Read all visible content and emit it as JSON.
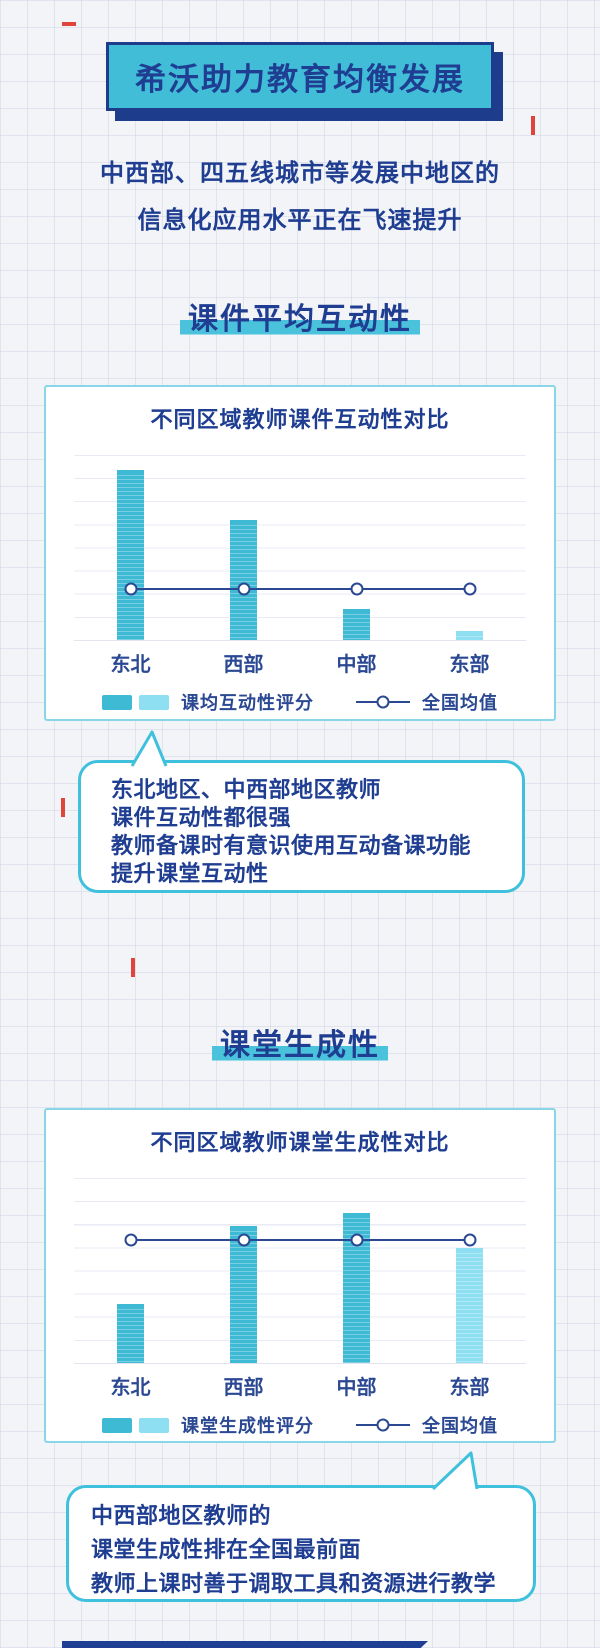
{
  "header": {
    "title": "希沃助力教育均衡发展",
    "intro_lines": [
      "中西部、四五线城市等发展中地区的",
      "信息化应用水平正在飞速提升"
    ]
  },
  "sections": [
    {
      "heading": "课件平均互动性"
    },
    {
      "heading": "课堂生成性"
    }
  ],
  "chart_data": [
    {
      "type": "bar",
      "title": "不同区域教师课件互动性对比",
      "categories": [
        "东北",
        "西部",
        "中部",
        "东部"
      ],
      "series": [
        {
          "name": "课均互动性评分",
          "values": [
            92,
            65,
            17,
            5
          ]
        }
      ],
      "national_average_line": {
        "name": "全国均值",
        "value": 27
      },
      "bar_colors": [
        "#3ebad5",
        "#3ebad5",
        "#3ebad5",
        "#8edff2"
      ],
      "value_scale": "percent-of-plot-height (no numeric axis shown)",
      "ylim": [
        0,
        100
      ],
      "grid": true,
      "legend_position": "bottom",
      "legend": {
        "bar_label": "课均互动性评分",
        "line_label": "全国均值"
      }
    },
    {
      "type": "bar",
      "title": "不同区域教师课堂生成性对比",
      "categories": [
        "东北",
        "西部",
        "中部",
        "东部"
      ],
      "series": [
        {
          "name": "课堂生成性评分",
          "values": [
            32,
            74,
            81,
            62
          ]
        }
      ],
      "national_average_line": {
        "name": "全国均值",
        "value": 66
      },
      "bar_colors": [
        "#3ebad5",
        "#3ebad5",
        "#3ebad5",
        "#8edff2"
      ],
      "value_scale": "percent-of-plot-height (no numeric axis shown)",
      "ylim": [
        0,
        100
      ],
      "grid": true,
      "legend_position": "bottom",
      "legend": {
        "bar_label": "课堂生成性评分",
        "line_label": "全国均值"
      }
    }
  ],
  "callouts": [
    {
      "lines": [
        "东北地区、中西部地区教师",
        "课件互动性都很强",
        "教师备课时有意识使用互动备课功能",
        "提升课堂互动性"
      ]
    },
    {
      "lines": [
        "中西部地区教师的",
        "课堂生成性排在全国最前面",
        "教师上课时善于调取工具和资源进行教学"
      ]
    }
  ],
  "colors": {
    "navy_text": "#1f3e92",
    "title_box_fill": "#41bdd8",
    "highlight_band": "#4ac2dc",
    "card_border": "#8ad6e9",
    "bubble_border": "#3fc0dc",
    "bar_dark": "#3ebad5",
    "bar_light": "#8edff2",
    "average_line": "#2b4893",
    "accent_red": "#e0453c",
    "footer_strip": "#1e3f94",
    "background": "#f3f4f7"
  }
}
